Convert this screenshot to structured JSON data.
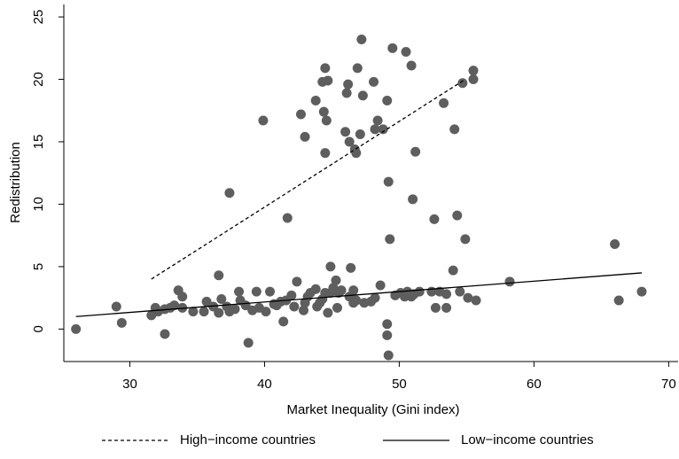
{
  "chart_data": {
    "type": "scatter",
    "x_label": "Market Inequality (Gini index)",
    "y_label": "Redistribution",
    "xlim": [
      25.1,
      70.7
    ],
    "xticks": [
      30,
      40,
      50,
      60,
      70
    ],
    "ylim": [
      -2.6,
      26
    ],
    "yticks": [
      0,
      5,
      10,
      15,
      20,
      25
    ],
    "grid": false,
    "legend": "bottom",
    "points": {
      "color": "#5e5e5e",
      "x": [
        39.9,
        37.4,
        41.7,
        42.7,
        43.0,
        43.8,
        44.3,
        44.5,
        44.7,
        44.4,
        44.6,
        44.5,
        46.1,
        46.2,
        46.0,
        46.3,
        46.7,
        46.8,
        46.9,
        47.2,
        47.3,
        47.1,
        48.1,
        48.4,
        48.2,
        48.8,
        49.1,
        49.2,
        49.3,
        49.5,
        50.5,
        50.9,
        51.0,
        51.2,
        52.6,
        53.3,
        54.1,
        54.3,
        54.7,
        54.9,
        55.5,
        55.5,
        54.0,
        66.0,
        36.6,
        44.9,
        46.4,
        26.0,
        29.0,
        29.4,
        31.6,
        31.9,
        32.1,
        32.6,
        32.6,
        33.0,
        33.3,
        33.6,
        33.9,
        33.9,
        34.7,
        35.5,
        35.7,
        36.2,
        36.6,
        36.8,
        37.2,
        37.4,
        37.8,
        38.1,
        38.2,
        38.6,
        38.8,
        39.1,
        39.4,
        39.6,
        40.1,
        40.4,
        40.7,
        40.9,
        41.2,
        41.4,
        41.6,
        42.0,
        42.2,
        42.4,
        42.9,
        43.0,
        43.2,
        43.4,
        43.8,
        43.9,
        44.1,
        44.3,
        44.5,
        44.7,
        44.9,
        45.1,
        45.3,
        45.4,
        45.5,
        45.7,
        46.3,
        46.6,
        46.6,
        46.8,
        47.4,
        47.9,
        48.2,
        48.6,
        49.1,
        49.1,
        49.2,
        49.7,
        50.1,
        50.4,
        50.6,
        50.9,
        51.1,
        51.5,
        52.4,
        52.7,
        53.0,
        53.5,
        53.5,
        54.5,
        55.1,
        55.7,
        58.2,
        66.3,
        68.0
      ],
      "values": [
        16.7,
        10.9,
        8.9,
        17.2,
        15.4,
        18.3,
        19.8,
        20.9,
        19.9,
        17.4,
        16.7,
        14.1,
        18.9,
        19.6,
        15.8,
        15.0,
        14.4,
        14.1,
        20.9,
        23.2,
        18.7,
        15.6,
        19.8,
        16.7,
        16.0,
        16.0,
        18.3,
        11.8,
        7.2,
        22.5,
        22.2,
        21.1,
        10.4,
        14.2,
        8.8,
        18.1,
        16.0,
        9.1,
        19.7,
        7.2,
        20.7,
        20.0,
        4.7,
        6.8,
        4.3,
        5.0,
        4.9,
        0.0,
        1.8,
        0.5,
        1.1,
        1.7,
        1.4,
        -0.4,
        1.6,
        1.7,
        1.9,
        3.1,
        2.6,
        1.7,
        1.4,
        1.4,
        2.2,
        1.8,
        1.3,
        2.4,
        1.8,
        1.4,
        1.6,
        3.0,
        2.3,
        1.9,
        -1.1,
        1.5,
        3.0,
        1.7,
        1.4,
        3.0,
        2.0,
        1.9,
        2.2,
        0.6,
        2.3,
        2.7,
        1.8,
        3.8,
        1.5,
        2.1,
        2.6,
        2.9,
        3.2,
        1.8,
        2.1,
        2.4,
        2.9,
        1.3,
        2.9,
        3.3,
        3.9,
        1.7,
        2.9,
        3.1,
        2.6,
        3.1,
        2.1,
        2.3,
        2.1,
        2.2,
        2.5,
        3.5,
        0.4,
        -0.5,
        -2.1,
        2.7,
        2.9,
        2.6,
        3.0,
        2.6,
        2.8,
        3.0,
        3.0,
        1.7,
        3.0,
        1.7,
        2.8,
        3.0,
        2.5,
        2.3,
        3.8,
        2.3,
        3.0
      ]
    },
    "series": [
      {
        "name": "High−income countries",
        "color": "#000000",
        "dash": "4,3",
        "x": [
          31.6,
          54.9
        ],
        "values": [
          4.0,
          20.0
        ]
      },
      {
        "name": "Low−income countries",
        "color": "#000000",
        "dash": "none",
        "x": [
          26.0,
          68.0
        ],
        "values": [
          1.0,
          4.5
        ]
      }
    ]
  }
}
